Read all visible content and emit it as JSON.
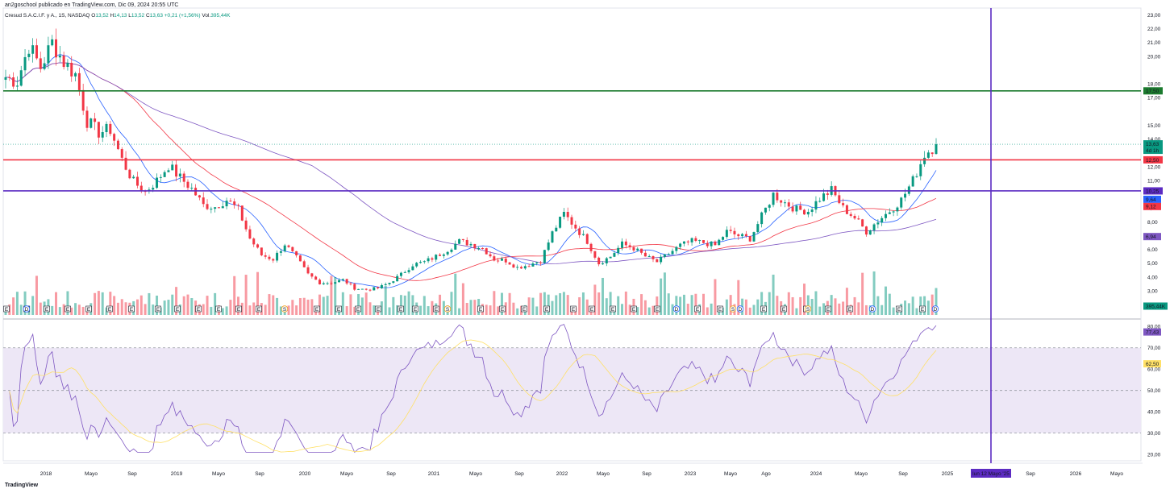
{
  "header": {
    "published": "an2goschool publicado en TradingView.com, Dic 09, 2024 20:55 UTC",
    "symbol": "Cresud S.A.C.I.F. y A., 1S, NASDAQ",
    "o_label": "O",
    "o_value": "13,52",
    "h_label": "H",
    "h_value": "14,13",
    "l_label": "L",
    "l_value": "13,52",
    "c_label": "C",
    "c_value": "13,63",
    "change": "+0,21 (+1,56%)",
    "vol_label": "Vol.",
    "vol_value": "395,44K"
  },
  "brand": "TradingView",
  "colors": {
    "up": "#089981",
    "down": "#f23645",
    "green_line": "#1b7a2e",
    "red_line": "#f23645",
    "purple_line": "#5c2bc2",
    "ma_blue": "#2962ff",
    "ma_red": "#f23645",
    "ma_purple": "#7e57c2",
    "rsi_line": "#7e57c2",
    "rsi_ma": "#ffe066",
    "rsi_band": "#ede7f6"
  },
  "chart_data": [
    {
      "type": "candlestick",
      "name": "Cresud S.A.C.I.F. y A., 1S, NASDAQ",
      "price_axis_ticks": [
        "2,00",
        "3,00",
        "4,00",
        "5,00",
        "6,00",
        "7,00",
        "8,00",
        "9,00",
        "11,00",
        "12,00",
        "14,00",
        "15,00",
        "17,00",
        "18,00",
        "20,00",
        "21,00",
        "22,00",
        "23,00"
      ],
      "ylim": [
        1.2,
        23.5
      ],
      "time_axis_labels": [
        "2018",
        "Mayo",
        "Sep",
        "2019",
        "Mayo",
        "Sep",
        "2020",
        "Mayo",
        "Sep",
        "2021",
        "Mayo",
        "Sep",
        "2022",
        "Mayo",
        "Sep",
        "2023",
        "Mayo",
        "Ago",
        "2024",
        "Mayo",
        "Sep",
        "2025",
        "Sep",
        "2026",
        "Mayo"
      ],
      "horizontal_levels": [
        {
          "label": "17,50",
          "value": 17.5,
          "color": "#1b7a2e"
        },
        {
          "label": "12,50",
          "value": 12.5,
          "color": "#f23645"
        },
        {
          "label": "10,25",
          "value": 10.25,
          "color": "#5c2bc2"
        }
      ],
      "price_badges": [
        {
          "label": "13,63",
          "sub": "4d 1h",
          "value": 13.63,
          "color": "#089981"
        },
        {
          "label": "9,64",
          "value": 9.64,
          "color": "#2962ff"
        },
        {
          "label": "9,12",
          "value": 9.12,
          "color": "#f23645"
        },
        {
          "label": "6,94",
          "value": 6.94,
          "color": "#7e57c2"
        },
        {
          "label": "395,44K",
          "value": 0,
          "color": "#089981"
        }
      ],
      "vertical_marker": {
        "label": "lun 12 Mayo '25"
      },
      "price_keyframes": [
        [
          0,
          18.5
        ],
        [
          3,
          18.2
        ],
        [
          6,
          20.8
        ],
        [
          9,
          19.2
        ],
        [
          12,
          21.0
        ],
        [
          15,
          19.6
        ],
        [
          18,
          18.7
        ],
        [
          21,
          15.3
        ],
        [
          24,
          14.5
        ],
        [
          27,
          14.7
        ],
        [
          30,
          12.5
        ],
        [
          33,
          10.9
        ],
        [
          36,
          10.2
        ],
        [
          39,
          11.0
        ],
        [
          42,
          12.1
        ],
        [
          45,
          11.2
        ],
        [
          48,
          10.4
        ],
        [
          51,
          9.2
        ],
        [
          54,
          9.1
        ],
        [
          57,
          9.6
        ],
        [
          60,
          8.9
        ],
        [
          63,
          6.8
        ],
        [
          66,
          5.6
        ],
        [
          69,
          5.3
        ],
        [
          72,
          6.4
        ],
        [
          75,
          5.4
        ],
        [
          78,
          4.2
        ],
        [
          81,
          3.6
        ],
        [
          84,
          3.6
        ],
        [
          87,
          3.8
        ],
        [
          90,
          3.2
        ],
        [
          93,
          3.1
        ],
        [
          96,
          3.2
        ],
        [
          99,
          3.6
        ],
        [
          102,
          4.2
        ],
        [
          105,
          4.9
        ],
        [
          108,
          5.1
        ],
        [
          111,
          5.5
        ],
        [
          114,
          6.0
        ],
        [
          117,
          6.6
        ],
        [
          120,
          6.4
        ],
        [
          123,
          6.1
        ],
        [
          126,
          5.3
        ],
        [
          129,
          5.2
        ],
        [
          132,
          4.7
        ],
        [
          135,
          4.9
        ],
        [
          138,
          5.2
        ],
        [
          141,
          7.2
        ],
        [
          144,
          8.6
        ],
        [
          147,
          7.6
        ],
        [
          150,
          6.6
        ],
        [
          153,
          5.0
        ],
        [
          156,
          5.5
        ],
        [
          159,
          6.4
        ],
        [
          162,
          6.1
        ],
        [
          165,
          5.5
        ],
        [
          168,
          5.1
        ],
        [
          171,
          5.7
        ],
        [
          174,
          6.3
        ],
        [
          177,
          6.6
        ],
        [
          180,
          6.5
        ],
        [
          183,
          6.3
        ],
        [
          186,
          7.3
        ],
        [
          189,
          7.0
        ],
        [
          192,
          6.8
        ],
        [
          195,
          8.4
        ],
        [
          198,
          10.0
        ],
        [
          201,
          9.4
        ],
        [
          204,
          8.9
        ],
        [
          207,
          8.8
        ],
        [
          210,
          9.7
        ],
        [
          213,
          10.3
        ],
        [
          216,
          9.0
        ],
        [
          219,
          8.3
        ],
        [
          222,
          7.3
        ],
        [
          225,
          8.1
        ],
        [
          228,
          8.8
        ],
        [
          231,
          9.6
        ],
        [
          234,
          11.0
        ],
        [
          237,
          12.9
        ],
        [
          240,
          13.6
        ]
      ],
      "moving_averages": [
        {
          "color": "#2962ff",
          "last_value": 9.64
        },
        {
          "color": "#f23645",
          "last_value": 9.12
        },
        {
          "color": "#7e57c2",
          "last_value": 6.94
        }
      ]
    },
    {
      "type": "line",
      "name": "RSI",
      "ticks": [
        "20,00",
        "30,00",
        "40,00",
        "50,00",
        "60,00",
        "70,00",
        "80,00"
      ],
      "ylim": [
        17,
        82
      ],
      "band": [
        30,
        70
      ],
      "mid": 50,
      "badges": [
        {
          "label": "77,43",
          "value": 77.43,
          "color": "#7e57c2"
        },
        {
          "label": "62,50",
          "value": 62.5,
          "color": "#ffe066"
        }
      ]
    }
  ]
}
